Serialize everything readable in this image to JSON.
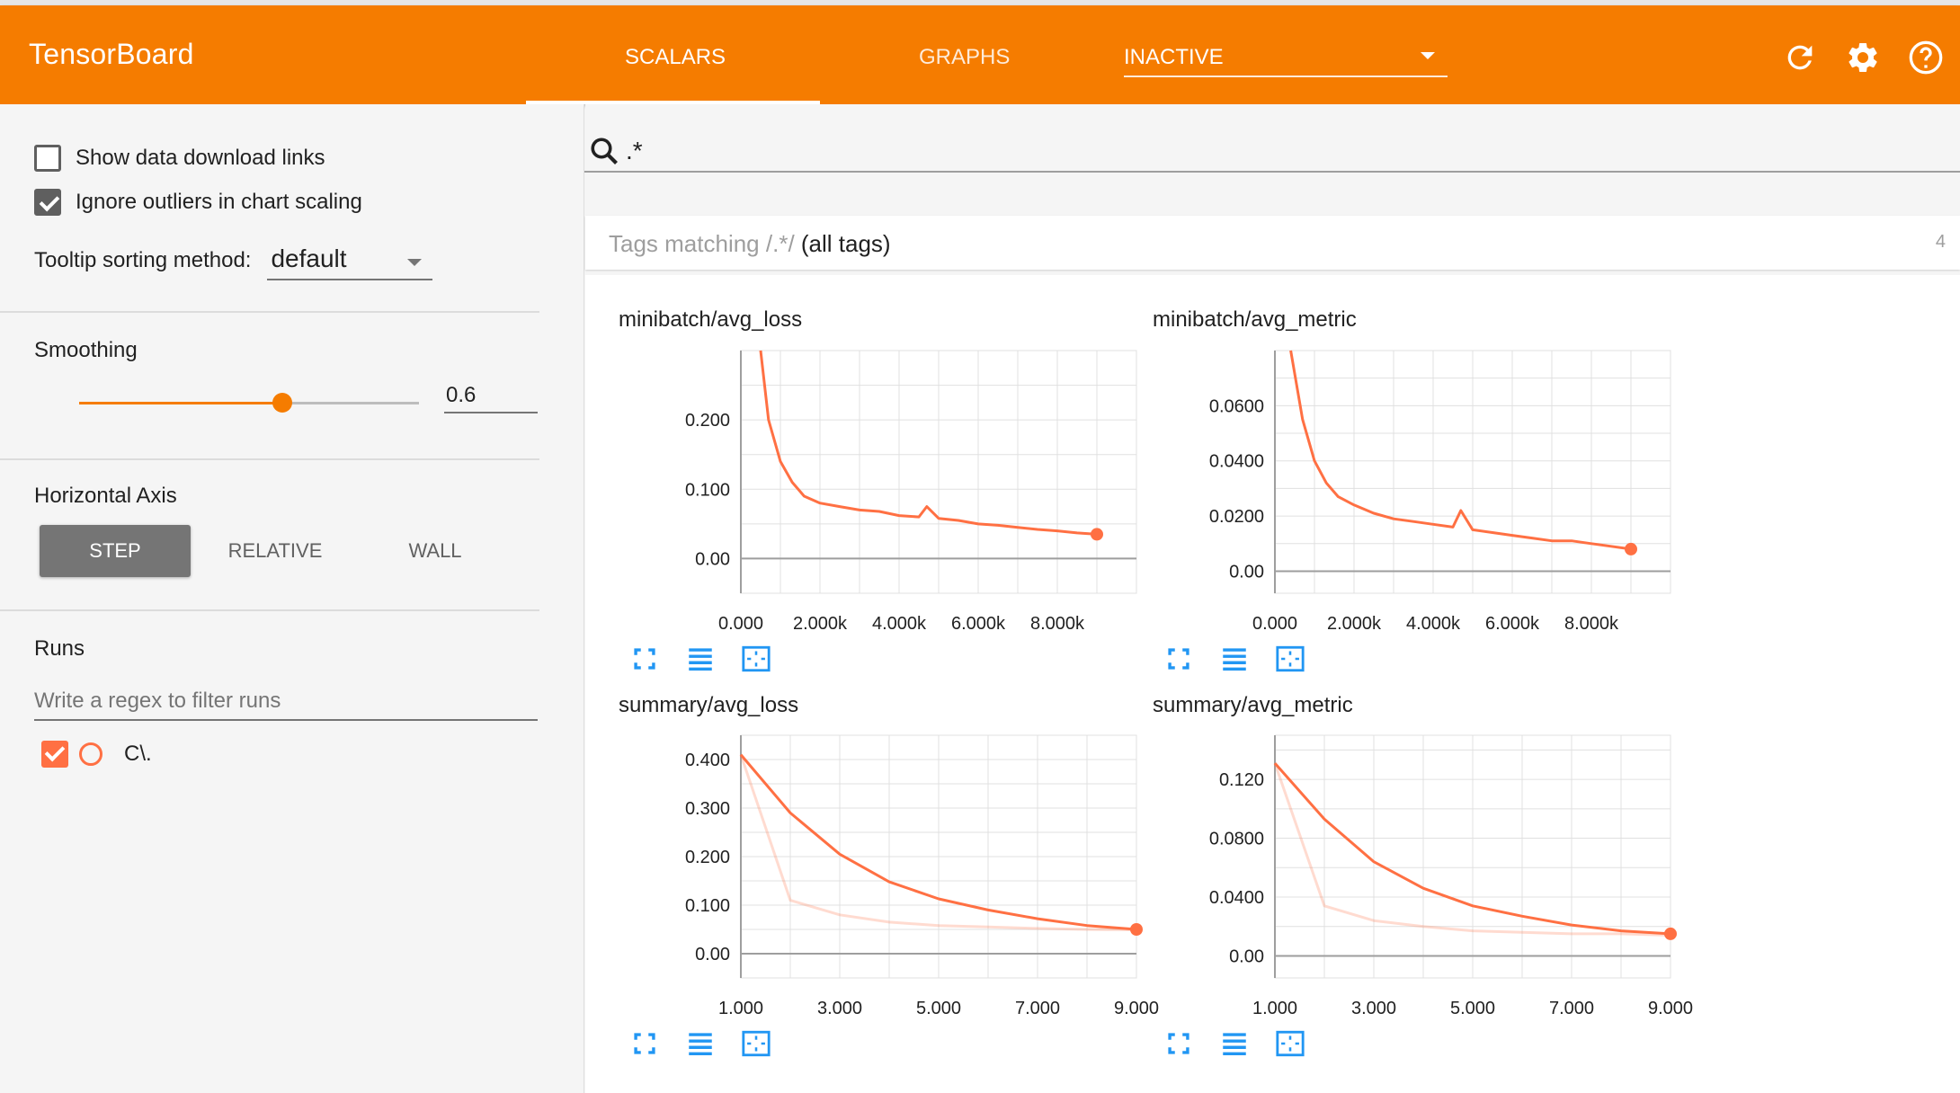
{
  "app": {
    "title": "TensorBoard",
    "tabs": [
      {
        "label": "SCALARS",
        "selected": true
      },
      {
        "label": "GRAPHS",
        "selected": false
      }
    ],
    "inactive_select": "INACTIVE",
    "icons": [
      "refresh-icon",
      "settings-icon",
      "help-icon"
    ],
    "accent": "#f57c00"
  },
  "sidebar": {
    "show_download_links": {
      "label": "Show data download links",
      "checked": false
    },
    "ignore_outliers": {
      "label": "Ignore outliers in chart scaling",
      "checked": true
    },
    "tooltip_sorting": {
      "label": "Tooltip sorting method:",
      "value": "default"
    },
    "smoothing": {
      "label": "Smoothing",
      "value": "0.6",
      "fraction": 0.6
    },
    "horizontal_axis": {
      "label": "Horizontal Axis",
      "options": [
        "STEP",
        "RELATIVE",
        "WALL"
      ],
      "selected": "STEP"
    },
    "runs": {
      "label": "Runs",
      "filter_placeholder": "Write a regex to filter runs",
      "items": [
        {
          "name": "C\\.",
          "checked": true
        }
      ]
    }
  },
  "main": {
    "search_value": ".*",
    "tag_header": {
      "prefix": "Tags matching ",
      "regex": "/.*/",
      "suffix": " (all tags)",
      "count": "4"
    }
  },
  "chart_data": [
    {
      "type": "line",
      "title": "minibatch/avg_loss",
      "xticks": [
        "0.000",
        "2.000k",
        "4.000k",
        "6.000k",
        "8.000k"
      ],
      "yticks": [
        "0.00",
        "0.100",
        "0.200"
      ],
      "xlim": [
        0,
        10000
      ],
      "ylim": [
        -0.05,
        0.3
      ],
      "series": [
        {
          "color": "#ff7043",
          "x": [
            500,
            700,
            1000,
            1300,
            1600,
            2000,
            2500,
            3000,
            3500,
            4000,
            4500,
            4700,
            5000,
            5500,
            6000,
            6500,
            7000,
            7500,
            8000,
            8500,
            9000
          ],
          "y": [
            0.3,
            0.2,
            0.14,
            0.11,
            0.09,
            0.08,
            0.075,
            0.07,
            0.068,
            0.062,
            0.06,
            0.075,
            0.058,
            0.055,
            0.05,
            0.048,
            0.045,
            0.042,
            0.04,
            0.037,
            0.035
          ]
        }
      ]
    },
    {
      "type": "line",
      "title": "minibatch/avg_metric",
      "xticks": [
        "0.000",
        "2.000k",
        "4.000k",
        "6.000k",
        "8.000k"
      ],
      "yticks": [
        "0.00",
        "0.0200",
        "0.0400",
        "0.0600"
      ],
      "xlim": [
        0,
        10000
      ],
      "ylim": [
        -0.008,
        0.08
      ],
      "series": [
        {
          "color": "#ff7043",
          "x": [
            400,
            700,
            1000,
            1300,
            1600,
            2000,
            2500,
            3000,
            3500,
            4000,
            4500,
            4700,
            5000,
            5500,
            6000,
            6500,
            7000,
            7500,
            8000,
            8500,
            9000
          ],
          "y": [
            0.08,
            0.055,
            0.04,
            0.032,
            0.027,
            0.024,
            0.021,
            0.019,
            0.018,
            0.017,
            0.016,
            0.022,
            0.015,
            0.014,
            0.013,
            0.012,
            0.011,
            0.011,
            0.01,
            0.009,
            0.008
          ]
        }
      ]
    },
    {
      "type": "line",
      "title": "summary/avg_loss",
      "xticks": [
        "1.000",
        "3.000",
        "5.000",
        "7.000",
        "9.000"
      ],
      "yticks": [
        "0.00",
        "0.100",
        "0.200",
        "0.300",
        "0.400"
      ],
      "xlim": [
        1,
        9
      ],
      "ylim": [
        -0.05,
        0.45
      ],
      "series": [
        {
          "color": "#ff7043",
          "opacity": 1,
          "x": [
            1,
            2,
            3,
            4,
            5,
            6,
            7,
            8,
            9
          ],
          "y": [
            0.41,
            0.29,
            0.205,
            0.148,
            0.113,
            0.09,
            0.072,
            0.058,
            0.05
          ]
        },
        {
          "color": "#ff7043",
          "opacity": 0.25,
          "x": [
            1,
            2,
            3,
            4,
            5,
            6,
            7,
            8,
            9
          ],
          "y": [
            0.41,
            0.11,
            0.08,
            0.065,
            0.058,
            0.055,
            0.052,
            0.05,
            0.049
          ]
        }
      ]
    },
    {
      "type": "line",
      "title": "summary/avg_metric",
      "xticks": [
        "1.000",
        "3.000",
        "5.000",
        "7.000",
        "9.000"
      ],
      "yticks": [
        "0.00",
        "0.0400",
        "0.0800",
        "0.120"
      ],
      "xlim": [
        1,
        9
      ],
      "ylim": [
        -0.015,
        0.15
      ],
      "series": [
        {
          "color": "#ff7043",
          "opacity": 1,
          "x": [
            1,
            2,
            3,
            4,
            5,
            6,
            7,
            8,
            9
          ],
          "y": [
            0.131,
            0.093,
            0.064,
            0.046,
            0.034,
            0.027,
            0.021,
            0.017,
            0.015
          ]
        },
        {
          "color": "#ff7043",
          "opacity": 0.25,
          "x": [
            1,
            2,
            3,
            4,
            5,
            6,
            7,
            8,
            9
          ],
          "y": [
            0.131,
            0.034,
            0.024,
            0.02,
            0.017,
            0.016,
            0.015,
            0.015,
            0.014
          ]
        }
      ]
    }
  ]
}
